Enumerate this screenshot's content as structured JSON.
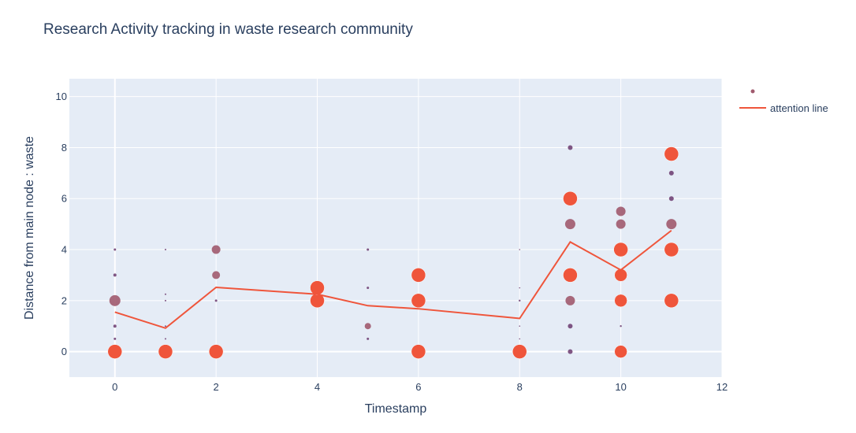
{
  "chart_data": {
    "type": "scatter",
    "title": "Research Activity tracking in waste research community",
    "xlabel": "Timestamp",
    "ylabel": "Distance from main node : waste",
    "xlim": [
      -0.9,
      12
    ],
    "ylim": [
      -1,
      10.7
    ],
    "xticks": [
      0,
      2,
      4,
      6,
      8,
      10,
      12
    ],
    "yticks": [
      0,
      2,
      4,
      6,
      8,
      10
    ],
    "grid": true,
    "legend_position": "top-right",
    "colors": {
      "plot_bg": "#e5ecf6",
      "grid": "#ffffff",
      "line": "#ef553b",
      "large_marker": "#ef553b",
      "mid_marker": "#a05a6e",
      "small_marker": "#6b3a6e"
    },
    "series": [
      {
        "name": "",
        "mode": "markers",
        "points": [
          {
            "x": 0,
            "y": 0,
            "size": 9
          },
          {
            "x": 0,
            "y": 0.5,
            "size": 1.5
          },
          {
            "x": 0,
            "y": 1,
            "size": 2
          },
          {
            "x": 0,
            "y": 2,
            "size": 7
          },
          {
            "x": 0,
            "y": 3,
            "size": 2
          },
          {
            "x": 0,
            "y": 4,
            "size": 1.5
          },
          {
            "x": 1,
            "y": 0,
            "size": 9
          },
          {
            "x": 1,
            "y": 0.5,
            "size": 1
          },
          {
            "x": 1,
            "y": 1,
            "size": 1
          },
          {
            "x": 1,
            "y": 2,
            "size": 1
          },
          {
            "x": 1,
            "y": 2.25,
            "size": 1
          },
          {
            "x": 1,
            "y": 4,
            "size": 1
          },
          {
            "x": 2,
            "y": 0,
            "size": 9
          },
          {
            "x": 2,
            "y": 2,
            "size": 1.5
          },
          {
            "x": 2,
            "y": 3,
            "size": 5
          },
          {
            "x": 2,
            "y": 4,
            "size": 5.5
          },
          {
            "x": 4,
            "y": 2,
            "size": 9
          },
          {
            "x": 4,
            "y": 2.5,
            "size": 9
          },
          {
            "x": 5,
            "y": 0.5,
            "size": 1.5
          },
          {
            "x": 5,
            "y": 1,
            "size": 4
          },
          {
            "x": 5,
            "y": 2.5,
            "size": 1.5
          },
          {
            "x": 5,
            "y": 4,
            "size": 1.5
          },
          {
            "x": 6,
            "y": 0,
            "size": 9
          },
          {
            "x": 6,
            "y": 2,
            "size": 9
          },
          {
            "x": 6,
            "y": 3,
            "size": 9
          },
          {
            "x": 8,
            "y": 0,
            "size": 9
          },
          {
            "x": 8,
            "y": 0.5,
            "size": 0.8
          },
          {
            "x": 8,
            "y": 1,
            "size": 0.8
          },
          {
            "x": 8,
            "y": 2,
            "size": 1.2
          },
          {
            "x": 8,
            "y": 2.5,
            "size": 0.8
          },
          {
            "x": 8,
            "y": 4,
            "size": 0.8
          },
          {
            "x": 9,
            "y": 0,
            "size": 3
          },
          {
            "x": 9,
            "y": 1,
            "size": 3
          },
          {
            "x": 9,
            "y": 2,
            "size": 6
          },
          {
            "x": 9,
            "y": 3,
            "size": 9
          },
          {
            "x": 9,
            "y": 5,
            "size": 6.5
          },
          {
            "x": 9,
            "y": 6,
            "size": 9
          },
          {
            "x": 9,
            "y": 8,
            "size": 3
          },
          {
            "x": 10,
            "y": 0,
            "size": 8
          },
          {
            "x": 10,
            "y": 1,
            "size": 1.2
          },
          {
            "x": 10,
            "y": 2,
            "size": 8
          },
          {
            "x": 10,
            "y": 3,
            "size": 8
          },
          {
            "x": 10,
            "y": 4,
            "size": 9
          },
          {
            "x": 10,
            "y": 5,
            "size": 6
          },
          {
            "x": 10,
            "y": 5.5,
            "size": 6
          },
          {
            "x": 11,
            "y": 2,
            "size": 9
          },
          {
            "x": 11,
            "y": 4,
            "size": 9
          },
          {
            "x": 11,
            "y": 5,
            "size": 6.5
          },
          {
            "x": 11,
            "y": 6,
            "size": 3
          },
          {
            "x": 11,
            "y": 7,
            "size": 3
          },
          {
            "x": 11,
            "y": 7.75,
            "size": 9
          }
        ]
      },
      {
        "name": "attention line",
        "mode": "lines",
        "x": [
          0,
          1,
          2,
          4,
          5,
          6,
          8,
          9,
          10,
          11
        ],
        "y": [
          1.55,
          0.92,
          2.52,
          2.25,
          1.8,
          1.68,
          1.3,
          4.3,
          3.2,
          4.75
        ]
      }
    ]
  }
}
